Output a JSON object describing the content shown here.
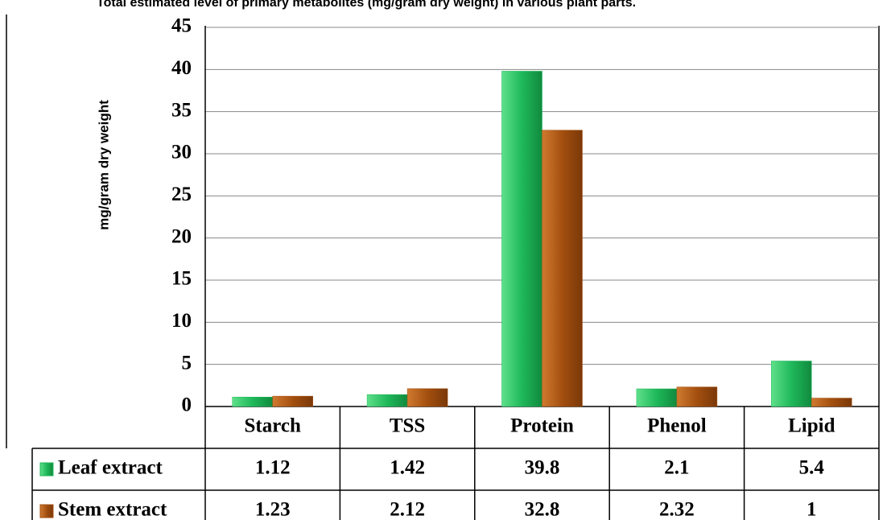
{
  "chart_data": {
    "type": "bar",
    "title": "Total estimated level of primary metabolites (mg/gram dry weight) in various plant parts.",
    "y_label": "mg/gram dry weight",
    "categories": [
      "Starch",
      "TSS",
      "Protein",
      "Phenol",
      "Lipid"
    ],
    "series": [
      {
        "name": "Leaf extract",
        "color": "#1fb85a",
        "values": [
          1.12,
          1.42,
          39.8,
          2.1,
          5.4
        ]
      },
      {
        "name": "Stem extract",
        "color": "#a34f0f",
        "values": [
          1.23,
          2.12,
          32.8,
          2.32,
          1
        ]
      }
    ],
    "ylim": [
      0,
      45
    ],
    "yticks": [
      0,
      5,
      10,
      15,
      20,
      25,
      30,
      35,
      40,
      45
    ],
    "grid": true
  }
}
